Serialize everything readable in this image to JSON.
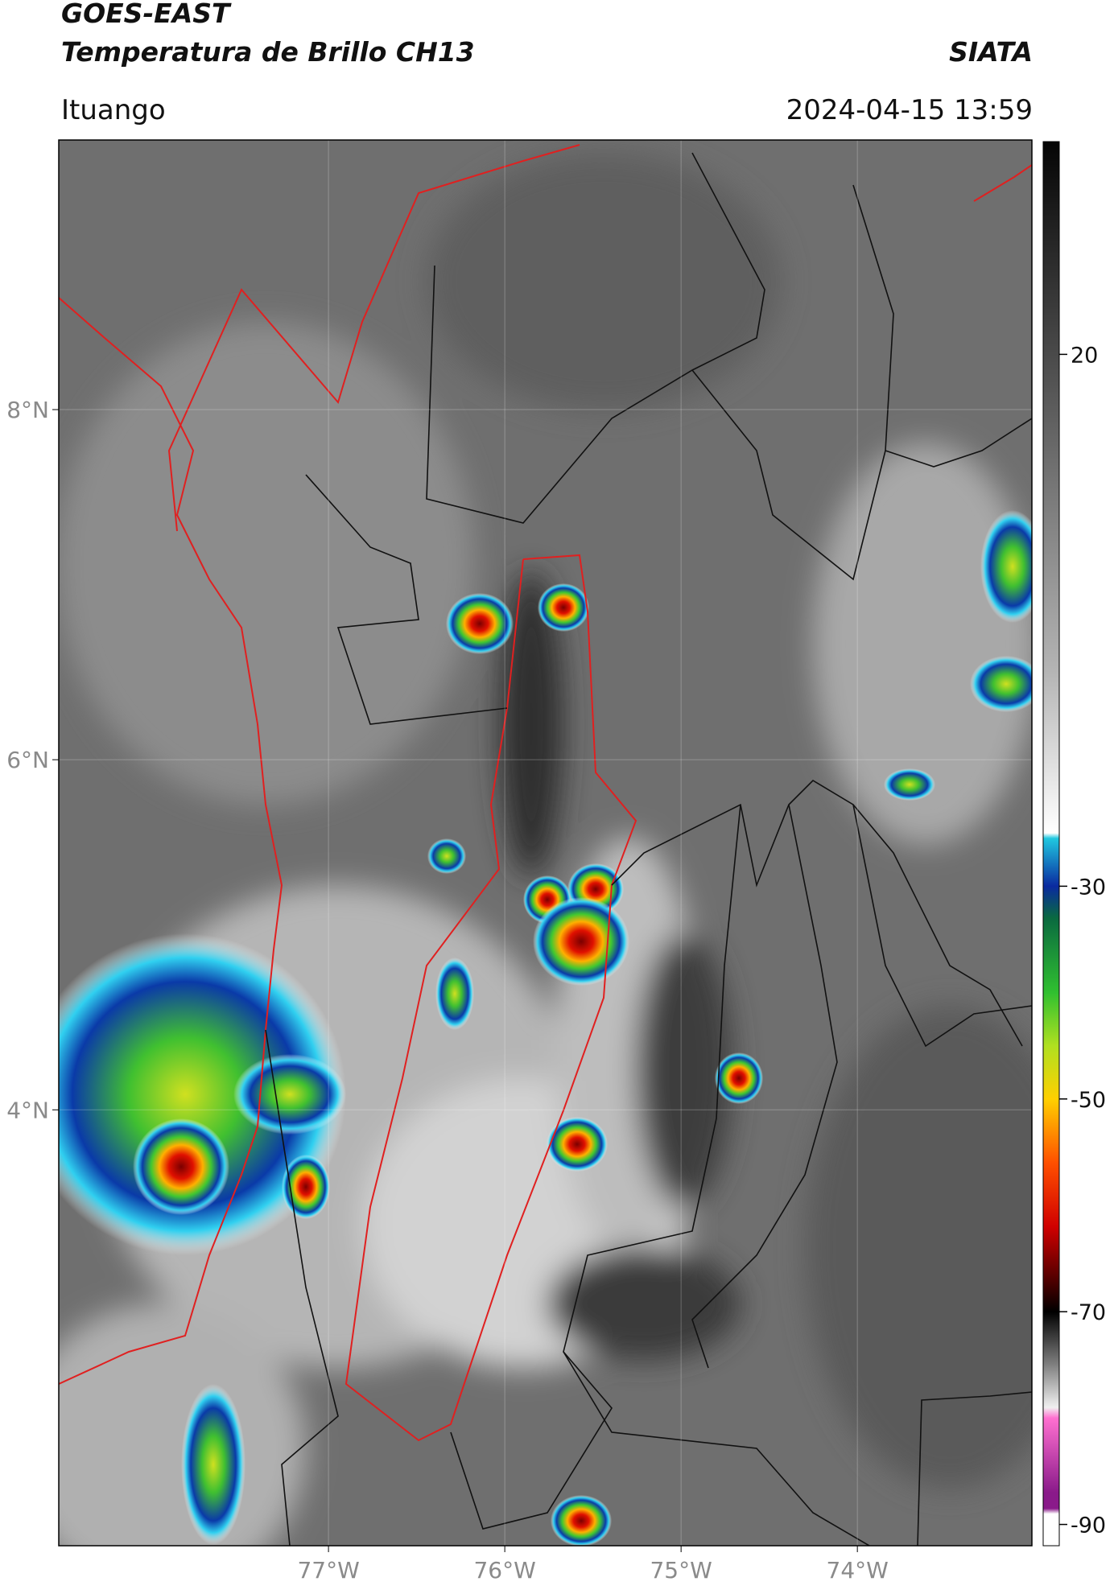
{
  "header": {
    "title_line1": "GOES-EAST",
    "title_line2": "Temperatura de Brillo CH13",
    "source": "SIATA",
    "location": "Ituango",
    "datetime": "2024-04-15 13:59"
  },
  "map": {
    "xlim": [
      -78.53,
      -73.01
    ],
    "ylim": [
      1.51,
      9.54
    ],
    "xticks": [
      {
        "value": -77,
        "label": "77°W"
      },
      {
        "value": -76,
        "label": "76°W"
      },
      {
        "value": -75,
        "label": "75°W"
      },
      {
        "value": -74,
        "label": "74°W"
      }
    ],
    "yticks": [
      {
        "value": 8,
        "label": "8°N"
      },
      {
        "value": 6,
        "label": "6°N"
      },
      {
        "value": 4,
        "label": "4°N"
      }
    ],
    "grid": true
  },
  "colorbar": {
    "lim": [
      -92,
      40
    ],
    "ticks": [
      20,
      -30,
      -50,
      -70,
      -90
    ],
    "colormap": [
      {
        "value": 40,
        "color": "#050505"
      },
      {
        "value": 20,
        "color": "#4a4a4a"
      },
      {
        "value": -10,
        "color": "#b5b5b5"
      },
      {
        "value": -25,
        "color": "#ffffff"
      },
      {
        "value": -25.5,
        "color": "#20c8e0"
      },
      {
        "value": -30,
        "color": "#0a2aa0"
      },
      {
        "value": -33,
        "color": "#0a6a40"
      },
      {
        "value": -40,
        "color": "#30c030"
      },
      {
        "value": -45,
        "color": "#b0e020"
      },
      {
        "value": -50,
        "color": "#ffd000"
      },
      {
        "value": -56,
        "color": "#ff5000"
      },
      {
        "value": -62,
        "color": "#d00000"
      },
      {
        "value": -67,
        "color": "#500000"
      },
      {
        "value": -70,
        "color": "#000000"
      },
      {
        "value": -75,
        "color": "#808080"
      },
      {
        "value": -79,
        "color": "#f0f0f0"
      },
      {
        "value": -80,
        "color": "#ff70d0"
      },
      {
        "value": -87,
        "color": "#8a1a8a"
      },
      {
        "value": -88.5,
        "color": "#8a1a8a"
      },
      {
        "value": -89,
        "color": "#ffffff"
      },
      {
        "value": -92,
        "color": "#ffffff"
      }
    ]
  }
}
